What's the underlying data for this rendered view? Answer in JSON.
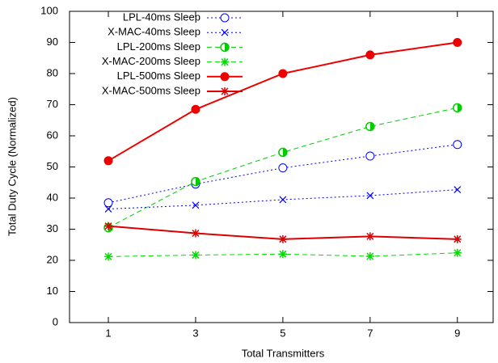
{
  "chart_data": {
    "type": "line",
    "xlabel": "Total Transmitters",
    "ylabel": "Total Duty Cycle (Normalized)",
    "x": [
      1,
      3,
      5,
      7,
      9
    ],
    "xlim": [
      0.11,
      9.82
    ],
    "xticks": [
      1,
      3,
      5,
      7,
      9
    ],
    "ylim": [
      0,
      100
    ],
    "yticks": [
      0,
      10,
      20,
      30,
      40,
      50,
      60,
      70,
      80,
      90,
      100
    ],
    "legend": "top-left",
    "series": [
      {
        "name": "LPL-40ms Sleep",
        "color": "#0000ff",
        "marker": "open-circle",
        "dash": "dotted",
        "values": [
          38.5,
          44.5,
          49.7,
          53.5,
          57.2
        ]
      },
      {
        "name": "X-MAC-40ms Sleep",
        "color": "#0000ff",
        "marker": "x",
        "dash": "dotted",
        "values": [
          36.5,
          37.7,
          39.5,
          40.8,
          42.7
        ]
      },
      {
        "name": "LPL-200ms Sleep",
        "color": "#00cc00",
        "marker": "half-circle",
        "dash": "dashed",
        "values": [
          30.5,
          45.3,
          54.7,
          63.0,
          69.0
        ]
      },
      {
        "name": "X-MAC-200ms Sleep",
        "color": "#00dd00",
        "marker": "asterisk",
        "dash": "dashed",
        "values": [
          21.2,
          21.7,
          22.0,
          21.3,
          22.4
        ]
      },
      {
        "name": "LPL-500ms Sleep",
        "color": "#ee0000",
        "marker": "filled-circle",
        "dash": "solid",
        "values": [
          52.0,
          68.5,
          80.0,
          86.0,
          90.0
        ]
      },
      {
        "name": "X-MAC-500ms Sleep",
        "color": "#dd0000",
        "marker": "asterisk",
        "dash": "solid",
        "values": [
          31.0,
          28.7,
          26.8,
          27.7,
          26.8
        ]
      }
    ]
  }
}
